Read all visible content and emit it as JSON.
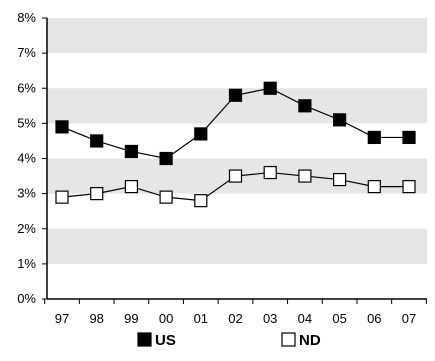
{
  "chart_data": {
    "type": "line",
    "categories": [
      "97",
      "98",
      "99",
      "00",
      "01",
      "02",
      "03",
      "04",
      "05",
      "06",
      "07"
    ],
    "y_tick_labels": [
      "0%",
      "1%",
      "2%",
      "3%",
      "4%",
      "5%",
      "6%",
      "7%",
      "8%"
    ],
    "y_ticks": [
      0,
      1,
      2,
      3,
      4,
      5,
      6,
      7,
      8
    ],
    "ylim": [
      0,
      8
    ],
    "unit": "%",
    "grid": "alternating horizontal bands",
    "band_color": "#e6e6e6",
    "legend_position": "bottom",
    "series": [
      {
        "name": "US",
        "marker": "filled-square",
        "color": "#000000",
        "values": [
          4.9,
          4.5,
          4.2,
          4.0,
          4.7,
          5.8,
          6.0,
          5.5,
          5.1,
          4.6,
          4.6
        ]
      },
      {
        "name": "ND",
        "marker": "open-square",
        "color": "#000000",
        "values": [
          2.9,
          3.0,
          3.2,
          2.9,
          2.8,
          3.5,
          3.6,
          3.5,
          3.4,
          3.2,
          3.2
        ]
      }
    ]
  }
}
